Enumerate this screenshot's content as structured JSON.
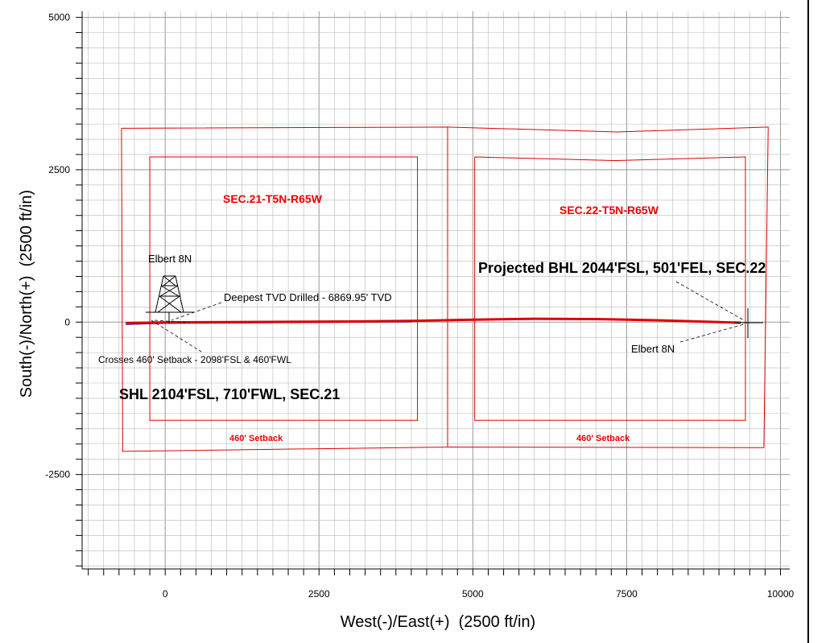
{
  "chart_data": {
    "type": "line",
    "xlabel": "West(-)/East(+)  (2500 ft/in)",
    "ylabel": "South(-)/North(+)  (2500 ft/in)",
    "xlim": [
      -1350,
      10150
    ],
    "ylim": [
      -4050,
      5100
    ],
    "x_ticks": [
      0,
      2500,
      5000,
      7500,
      10000
    ],
    "x_tick_labels": [
      "0",
      "2500",
      "5000",
      "7500",
      "10000"
    ],
    "y_ticks": [
      -2500,
      0,
      2500,
      5000
    ],
    "y_tick_labels": [
      "-2500",
      "0",
      "2500",
      "5000"
    ],
    "grid": true,
    "section_boundaries": [
      {
        "points": [
          [
            -710,
            3180
          ],
          [
            4590,
            3200
          ],
          [
            4590,
            -2050
          ],
          [
            -690,
            -2120
          ],
          [
            -710,
            3180
          ]
        ]
      },
      {
        "points": [
          [
            4590,
            3200
          ],
          [
            7330,
            3120
          ],
          [
            9800,
            3200
          ],
          [
            9730,
            -2060
          ],
          [
            4590,
            -2050
          ]
        ]
      }
    ],
    "setback_lines": [
      {
        "points": [
          [
            -250,
            2710
          ],
          [
            4100,
            2710
          ],
          [
            4100,
            -1610
          ],
          [
            -250,
            -1610
          ],
          [
            -250,
            2710
          ]
        ]
      },
      {
        "points": [
          [
            5030,
            2710
          ],
          [
            7330,
            2650
          ],
          [
            9430,
            2710
          ],
          [
            9430,
            -1610
          ],
          [
            5030,
            -1610
          ],
          [
            5030,
            2710
          ]
        ]
      }
    ],
    "wellpath": {
      "color": "#dd0000",
      "x": [
        -640,
        0,
        1000,
        2000,
        3000,
        4000,
        5000,
        6000,
        7000,
        8000,
        9000,
        9350
      ],
      "y": [
        -15,
        -5,
        0,
        5,
        10,
        20,
        40,
        55,
        50,
        30,
        0,
        -10
      ]
    },
    "survey_path": {
      "color": "#1a1a90",
      "x": [
        -640,
        -300,
        0,
        2000,
        4000
      ],
      "y": [
        -30,
        -20,
        -12,
        0,
        12
      ]
    },
    "labels": {
      "sec21": "SEC.21-T5N-R65W",
      "sec22": "SEC.22-T5N-R65W",
      "setback_left": "460' Setback",
      "setback_right": "460' Setback",
      "rig_name": "Elbert  8N",
      "target_name": "Elbert  8N",
      "deepest_tvd": "Deepest TVD Drilled - 6869.95' TVD",
      "crosses_setback": "Crosses 460' Setback - 2098'FSL &  460'FWL",
      "shl": "SHL 2104'FSL, 710'FWL, SEC.21",
      "projected_bhl": "Projected BHL 2044'FSL, 501'FEL, SEC.22"
    },
    "colors": {
      "grid": "#b8b8b8",
      "grid_major": "#999999",
      "boundary": "#dd0000",
      "section_label": "#ee0000",
      "axis": "#000000"
    }
  }
}
